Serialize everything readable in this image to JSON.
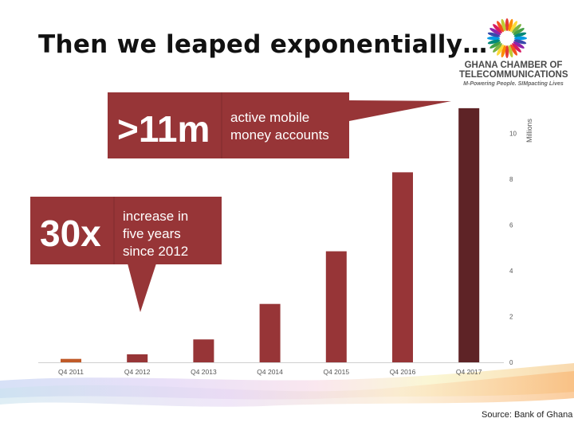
{
  "slide": {
    "title": "Then we leaped exponentially…",
    "source": "Source: Bank of Ghana"
  },
  "logo": {
    "line1": "GHANA CHAMBER OF",
    "line2": "TELECOMMUNICATIONS",
    "tagline": "M-Powering People. SIMpacting Lives"
  },
  "callouts": [
    {
      "big": ">11m",
      "small_lines": [
        "active mobile",
        "money accounts"
      ]
    },
    {
      "big": "30x",
      "small_lines": [
        "increase in",
        "five years",
        "since 2012"
      ]
    }
  ],
  "colors": {
    "bar": "#973537",
    "bar_2011": "#c05a28",
    "bar_2017": "#5e2326",
    "callout": "#973537"
  },
  "chart_data": {
    "type": "bar",
    "categories": [
      "Q4 2011",
      "Q4 2012",
      "Q4 2013",
      "Q4 2014",
      "Q4 2015",
      "Q4 2016",
      "Q4 2017"
    ],
    "values": [
      0.15,
      0.35,
      1.0,
      2.55,
      4.85,
      8.3,
      11.1
    ],
    "ylabel": "Millions",
    "yticks": [
      0,
      2,
      4,
      6,
      8,
      10
    ],
    "ylim": [
      0,
      12
    ],
    "grid": false
  }
}
